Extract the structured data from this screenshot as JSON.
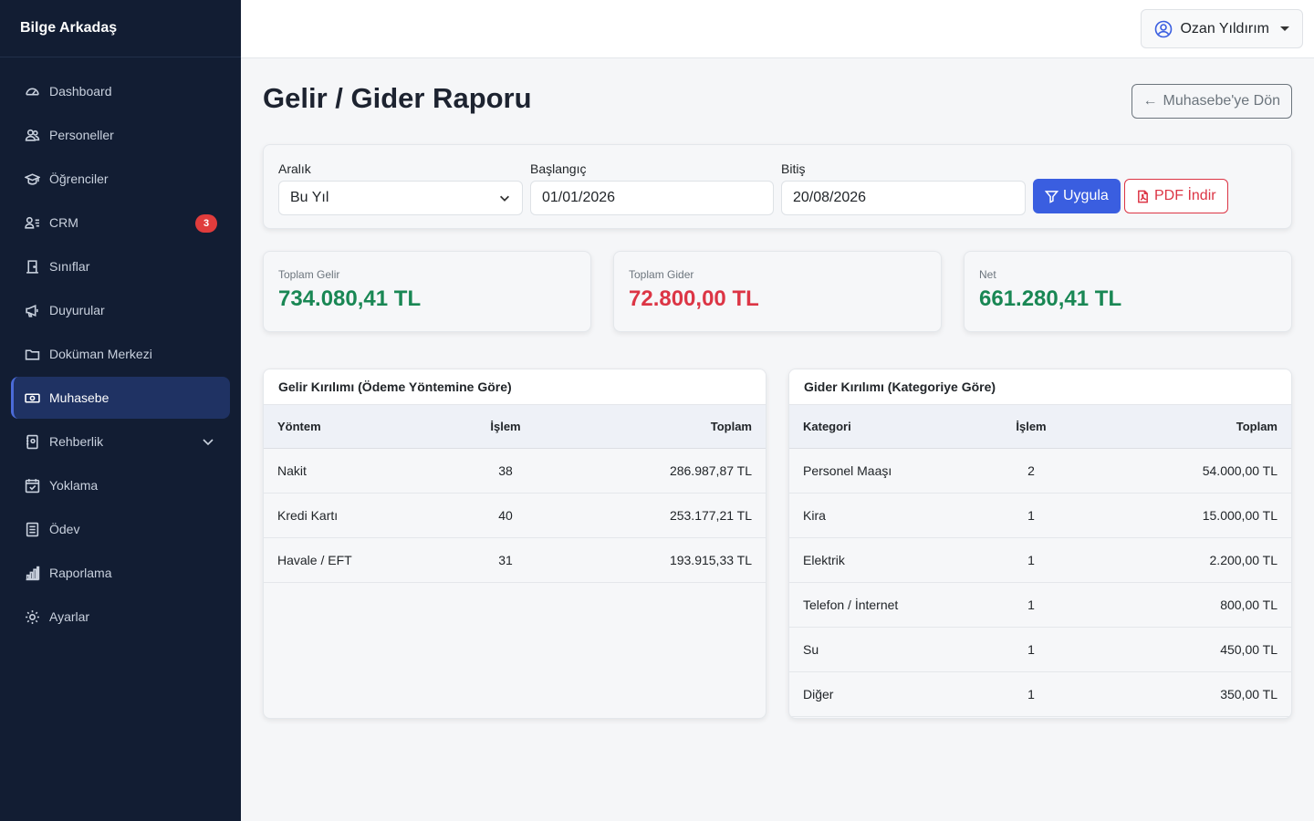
{
  "brand": "Bilge Arkadaş",
  "sidebar": {
    "items": [
      {
        "label": "Dashboard",
        "icon": "speedometer-icon"
      },
      {
        "label": "Personeller",
        "icon": "people-icon"
      },
      {
        "label": "Öğrenciler",
        "icon": "mortarboard-icon"
      },
      {
        "label": "CRM",
        "icon": "person-lines-icon",
        "badge": "3"
      },
      {
        "label": "Sınıflar",
        "icon": "door-icon"
      },
      {
        "label": "Duyurular",
        "icon": "megaphone-icon"
      },
      {
        "label": "Doküman Merkezi",
        "icon": "folder-icon"
      },
      {
        "label": "Muhasebe",
        "icon": "cash-icon",
        "active": true
      },
      {
        "label": "Rehberlik",
        "icon": "journal-icon",
        "expandable": true
      },
      {
        "label": "Yoklama",
        "icon": "calendar-check-icon"
      },
      {
        "label": "Ödev",
        "icon": "list-icon"
      },
      {
        "label": "Raporlama",
        "icon": "bar-chart-icon"
      },
      {
        "label": "Ayarlar",
        "icon": "gear-icon"
      }
    ]
  },
  "topbar": {
    "user_name": "Ozan Yıldırım"
  },
  "page": {
    "title": "Gelir / Gider Raporu",
    "back_label": "Muhasebe'ye Dön"
  },
  "filters": {
    "range_label": "Aralık",
    "range_value": "Bu Yıl",
    "start_label": "Başlangıç",
    "start_value": "01/01/2026",
    "end_label": "Bitiş",
    "end_value": "20/08/2026",
    "apply_label": "Uygula",
    "pdf_label": "PDF İndir"
  },
  "stats": {
    "income_label": "Toplam Gelir",
    "income_value": "734.080,41 TL",
    "expense_label": "Toplam Gider",
    "expense_value": "72.800,00 TL",
    "net_label": "Net",
    "net_value": "661.280,41 TL"
  },
  "colors": {
    "positive": "#198754",
    "negative": "#dc3545",
    "primary": "#3a5ee0"
  },
  "income_table": {
    "title": "Gelir Kırılımı (Ödeme Yöntemine Göre)",
    "headers": [
      "Yöntem",
      "İşlem",
      "Toplam"
    ],
    "rows": [
      [
        "Nakit",
        "38",
        "286.987,87 TL"
      ],
      [
        "Kredi Kartı",
        "40",
        "253.177,21 TL"
      ],
      [
        "Havale / EFT",
        "31",
        "193.915,33 TL"
      ]
    ]
  },
  "expense_table": {
    "title": "Gider Kırılımı (Kategoriye Göre)",
    "headers": [
      "Kategori",
      "İşlem",
      "Toplam"
    ],
    "rows": [
      [
        "Personel Maaşı",
        "2",
        "54.000,00 TL"
      ],
      [
        "Kira",
        "1",
        "15.000,00 TL"
      ],
      [
        "Elektrik",
        "1",
        "2.200,00 TL"
      ],
      [
        "Telefon / İnternet",
        "1",
        "800,00 TL"
      ],
      [
        "Su",
        "1",
        "450,00 TL"
      ],
      [
        "Diğer",
        "1",
        "350,00 TL"
      ]
    ]
  }
}
